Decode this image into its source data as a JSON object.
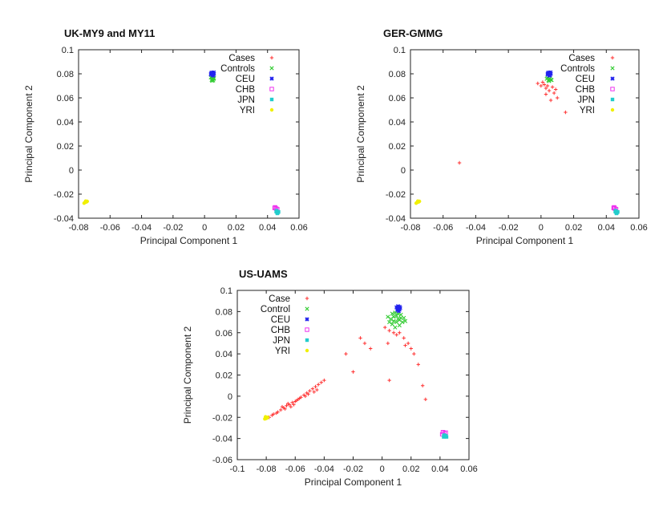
{
  "chart_data": [
    {
      "type": "scatter",
      "title": "UK-MY9 and MY11",
      "xlabel": "Principal Component 1",
      "ylabel": "Principal Component 2",
      "xlim": [
        -0.08,
        0.06
      ],
      "ylim": [
        -0.04,
        0.1
      ],
      "xticks": [
        "-0.08",
        "-0.06",
        "-0.04",
        "-0.02",
        "0",
        "0.02",
        "0.04",
        "0.06"
      ],
      "yticks": [
        "-0.04",
        "-0.02",
        "0",
        "0.02",
        "0.04",
        "0.06",
        "0.08",
        "0.1"
      ],
      "legend_position": "top-right",
      "series": [
        {
          "name": "Cases",
          "color": "#ff3333",
          "marker": "plus",
          "points": []
        },
        {
          "name": "Controls",
          "color": "#33cc33",
          "marker": "cross",
          "points": [
            [
              0.005,
              0.076
            ],
            [
              0.0045,
              0.075
            ],
            [
              0.0055,
              0.0745
            ],
            [
              0.004,
              0.077
            ],
            [
              0.006,
              0.0765
            ],
            [
              0.005,
              0.0755
            ],
            [
              0.0048,
              0.0742
            ],
            [
              0.0058,
              0.0758
            ]
          ]
        },
        {
          "name": "CEU",
          "color": "#2222ee",
          "marker": "star",
          "points": [
            [
              0.005,
              0.0805
            ],
            [
              0.004,
              0.0795
            ],
            [
              0.006,
              0.08
            ],
            [
              0.0045,
              0.081
            ],
            [
              0.0055,
              0.0785
            ],
            [
              0.005,
              0.0792
            ],
            [
              0.0042,
              0.0802
            ],
            [
              0.0058,
              0.0812
            ]
          ]
        },
        {
          "name": "CHB",
          "color": "#ee33ee",
          "marker": "square-open",
          "points": [
            [
              0.0445,
              -0.0315
            ],
            [
              0.0455,
              -0.032
            ],
            [
              0.0448,
              -0.031
            ],
            [
              0.0462,
              -0.0325
            ]
          ]
        },
        {
          "name": "JPN",
          "color": "#22cccc",
          "marker": "square",
          "points": [
            [
              0.046,
              -0.035
            ],
            [
              0.0455,
              -0.0345
            ],
            [
              0.0465,
              -0.0355
            ],
            [
              0.0458,
              -0.0338
            ],
            [
              0.047,
              -0.0348
            ],
            [
              0.0462,
              -0.036
            ]
          ]
        },
        {
          "name": "YRI",
          "color": "#f0f000",
          "marker": "circle",
          "points": [
            [
              -0.075,
              -0.0265
            ],
            [
              -0.076,
              -0.027
            ],
            [
              -0.0745,
              -0.026
            ],
            [
              -0.0755,
              -0.0258
            ],
            [
              -0.0765,
              -0.0275
            ]
          ]
        }
      ]
    },
    {
      "type": "scatter",
      "title": "GER-GMMG",
      "xlabel": "Principal Component 1",
      "ylabel": "Principal Component 2",
      "xlim": [
        -0.08,
        0.06
      ],
      "ylim": [
        -0.04,
        0.1
      ],
      "xticks": [
        "-0.08",
        "-0.06",
        "-0.04",
        "-0.02",
        "0",
        "0.02",
        "0.04",
        "0.06"
      ],
      "yticks": [
        "-0.04",
        "-0.02",
        "0",
        "0.02",
        "0.04",
        "0.06",
        "0.08",
        "0.1"
      ],
      "legend_position": "top-right",
      "series": [
        {
          "name": "Cases",
          "color": "#ff3333",
          "marker": "plus",
          "points": [
            [
              0.002,
              0.071
            ],
            [
              0.003,
              0.068
            ],
            [
              0.001,
              0.073
            ],
            [
              0.005,
              0.066
            ],
            [
              0.004,
              0.07
            ],
            [
              0.008,
              0.064
            ],
            [
              0.006,
              0.058
            ],
            [
              0.01,
              0.06
            ],
            [
              0.0,
              0.07
            ],
            [
              -0.002,
              0.072
            ],
            [
              0.007,
              0.069
            ],
            [
              0.015,
              0.048
            ],
            [
              -0.05,
              0.006
            ],
            [
              0.003,
              0.063
            ],
            [
              0.009,
              0.067
            ]
          ]
        },
        {
          "name": "Controls",
          "color": "#33cc33",
          "marker": "cross",
          "points": [
            [
              0.005,
              0.0755
            ],
            [
              0.0045,
              0.0745
            ],
            [
              0.0055,
              0.076
            ],
            [
              0.004,
              0.0765
            ],
            [
              0.006,
              0.075
            ],
            [
              0.005,
              0.074
            ],
            [
              0.0035,
              0.0758
            ],
            [
              0.0065,
              0.0748
            ]
          ]
        },
        {
          "name": "CEU",
          "color": "#2222ee",
          "marker": "star",
          "points": [
            [
              0.005,
              0.0805
            ],
            [
              0.004,
              0.0795
            ],
            [
              0.006,
              0.08
            ],
            [
              0.0045,
              0.081
            ],
            [
              0.0055,
              0.079
            ],
            [
              0.005,
              0.0785
            ],
            [
              0.0042,
              0.0802
            ],
            [
              0.0058,
              0.0812
            ]
          ]
        },
        {
          "name": "CHB",
          "color": "#ee33ee",
          "marker": "square-open",
          "points": [
            [
              0.0445,
              -0.0315
            ],
            [
              0.0452,
              -0.032
            ],
            [
              0.0448,
              -0.031
            ],
            [
              0.046,
              -0.0325
            ]
          ]
        },
        {
          "name": "JPN",
          "color": "#22cccc",
          "marker": "square",
          "points": [
            [
              0.046,
              -0.035
            ],
            [
              0.0455,
              -0.0345
            ],
            [
              0.0465,
              -0.0355
            ],
            [
              0.0458,
              -0.0338
            ],
            [
              0.047,
              -0.0348
            ],
            [
              0.0462,
              -0.036
            ]
          ]
        },
        {
          "name": "YRI",
          "color": "#f0f000",
          "marker": "circle",
          "points": [
            [
              -0.075,
              -0.0265
            ],
            [
              -0.076,
              -0.027
            ],
            [
              -0.0745,
              -0.026
            ],
            [
              -0.0755,
              -0.0258
            ],
            [
              -0.0765,
              -0.0275
            ]
          ]
        }
      ]
    },
    {
      "type": "scatter",
      "title": "US-UAMS",
      "xlabel": "Principal Component 1",
      "ylabel": "Principal Component 2",
      "xlim": [
        -0.1,
        0.06
      ],
      "ylim": [
        -0.06,
        0.1
      ],
      "xticks": [
        "-0.1",
        "-0.08",
        "-0.06",
        "-0.04",
        "-0.02",
        "0",
        "0.02",
        "0.04",
        "0.06"
      ],
      "yticks": [
        "-0.06",
        "-0.04",
        "-0.02",
        "0",
        "0.02",
        "0.04",
        "0.06",
        "0.08",
        "0.1"
      ],
      "legend_position": "top-left",
      "series": [
        {
          "name": "Case",
          "color": "#ff3333",
          "marker": "plus",
          "points": [
            [
              -0.078,
              -0.02
            ],
            [
              -0.075,
              -0.017
            ],
            [
              -0.072,
              -0.015
            ],
            [
              -0.07,
              -0.013
            ],
            [
              -0.068,
              -0.011
            ],
            [
              -0.066,
              -0.009
            ],
            [
              -0.064,
              -0.008
            ],
            [
              -0.062,
              -0.006
            ],
            [
              -0.06,
              -0.005
            ],
            [
              -0.058,
              -0.003
            ],
            [
              -0.056,
              -0.001
            ],
            [
              -0.054,
              0.001
            ],
            [
              -0.052,
              0.003
            ],
            [
              -0.05,
              0.005
            ],
            [
              -0.048,
              0.007
            ],
            [
              -0.046,
              0.009
            ],
            [
              -0.044,
              0.011
            ],
            [
              -0.042,
              0.013
            ],
            [
              -0.065,
              -0.007
            ],
            [
              -0.063,
              -0.01
            ],
            [
              -0.061,
              -0.008
            ],
            [
              -0.059,
              -0.004
            ],
            [
              -0.057,
              -0.002
            ],
            [
              -0.053,
              0.0
            ],
            [
              -0.051,
              0.002
            ],
            [
              -0.067,
              -0.012
            ],
            [
              -0.069,
              -0.01
            ],
            [
              -0.073,
              -0.016
            ],
            [
              -0.076,
              -0.018
            ],
            [
              -0.047,
              0.004
            ],
            [
              -0.045,
              0.006
            ],
            [
              -0.04,
              0.015
            ],
            [
              -0.025,
              0.04
            ],
            [
              -0.02,
              0.023
            ],
            [
              -0.015,
              0.055
            ],
            [
              -0.012,
              0.05
            ],
            [
              -0.008,
              0.045
            ],
            [
              0.002,
              0.065
            ],
            [
              0.004,
              0.05
            ],
            [
              0.005,
              0.062
            ],
            [
              0.012,
              0.06
            ],
            [
              0.015,
              0.055
            ],
            [
              0.018,
              0.05
            ],
            [
              0.02,
              0.045
            ],
            [
              0.022,
              0.04
            ],
            [
              0.025,
              0.03
            ],
            [
              0.028,
              0.01
            ],
            [
              0.03,
              -0.003
            ],
            [
              0.005,
              0.015
            ],
            [
              0.008,
              0.06
            ],
            [
              0.01,
              0.058
            ],
            [
              0.016,
              0.048
            ]
          ]
        },
        {
          "name": "Control",
          "color": "#33cc33",
          "marker": "cross",
          "points": [
            [
              0.008,
              0.075
            ],
            [
              0.01,
              0.07
            ],
            [
              0.012,
              0.072
            ],
            [
              0.007,
              0.068
            ],
            [
              0.011,
              0.078
            ],
            [
              0.013,
              0.074
            ],
            [
              0.009,
              0.065
            ],
            [
              0.006,
              0.073
            ],
            [
              0.014,
              0.07
            ],
            [
              0.01,
              0.076
            ],
            [
              0.005,
              0.07
            ],
            [
              0.012,
              0.067
            ],
            [
              0.015,
              0.074
            ],
            [
              0.008,
              0.071
            ],
            [
              0.011,
              0.073
            ],
            [
              0.009,
              0.079
            ],
            [
              0.013,
              0.077
            ],
            [
              0.004,
              0.075
            ],
            [
              0.016,
              0.071
            ],
            [
              0.007,
              0.078
            ]
          ]
        },
        {
          "name": "CEU",
          "color": "#2222ee",
          "marker": "star",
          "points": [
            [
              0.011,
              0.083
            ],
            [
              0.012,
              0.082
            ],
            [
              0.01,
              0.084
            ],
            [
              0.011,
              0.085
            ],
            [
              0.0125,
              0.0835
            ],
            [
              0.0105,
              0.0815
            ],
            [
              0.0115,
              0.0805
            ],
            [
              0.012,
              0.0845
            ]
          ]
        },
        {
          "name": "CHB",
          "color": "#ee33ee",
          "marker": "square-open",
          "points": [
            [
              0.042,
              -0.034
            ],
            [
              0.043,
              -0.035
            ],
            [
              0.0415,
              -0.036
            ],
            [
              0.044,
              -0.0345
            ]
          ]
        },
        {
          "name": "JPN",
          "color": "#22cccc",
          "marker": "square",
          "points": [
            [
              0.043,
              -0.037
            ],
            [
              0.0435,
              -0.038
            ],
            [
              0.0425,
              -0.0385
            ],
            [
              0.044,
              -0.0375
            ],
            [
              0.0445,
              -0.0385
            ],
            [
              0.0428,
              -0.0368
            ]
          ]
        },
        {
          "name": "YRI",
          "color": "#f0f000",
          "marker": "circle",
          "points": [
            [
              -0.08,
              -0.021
            ],
            [
              -0.079,
              -0.02
            ],
            [
              -0.081,
              -0.0215
            ],
            [
              -0.0795,
              -0.0205
            ],
            [
              -0.0805,
              -0.0195
            ]
          ]
        }
      ]
    }
  ]
}
